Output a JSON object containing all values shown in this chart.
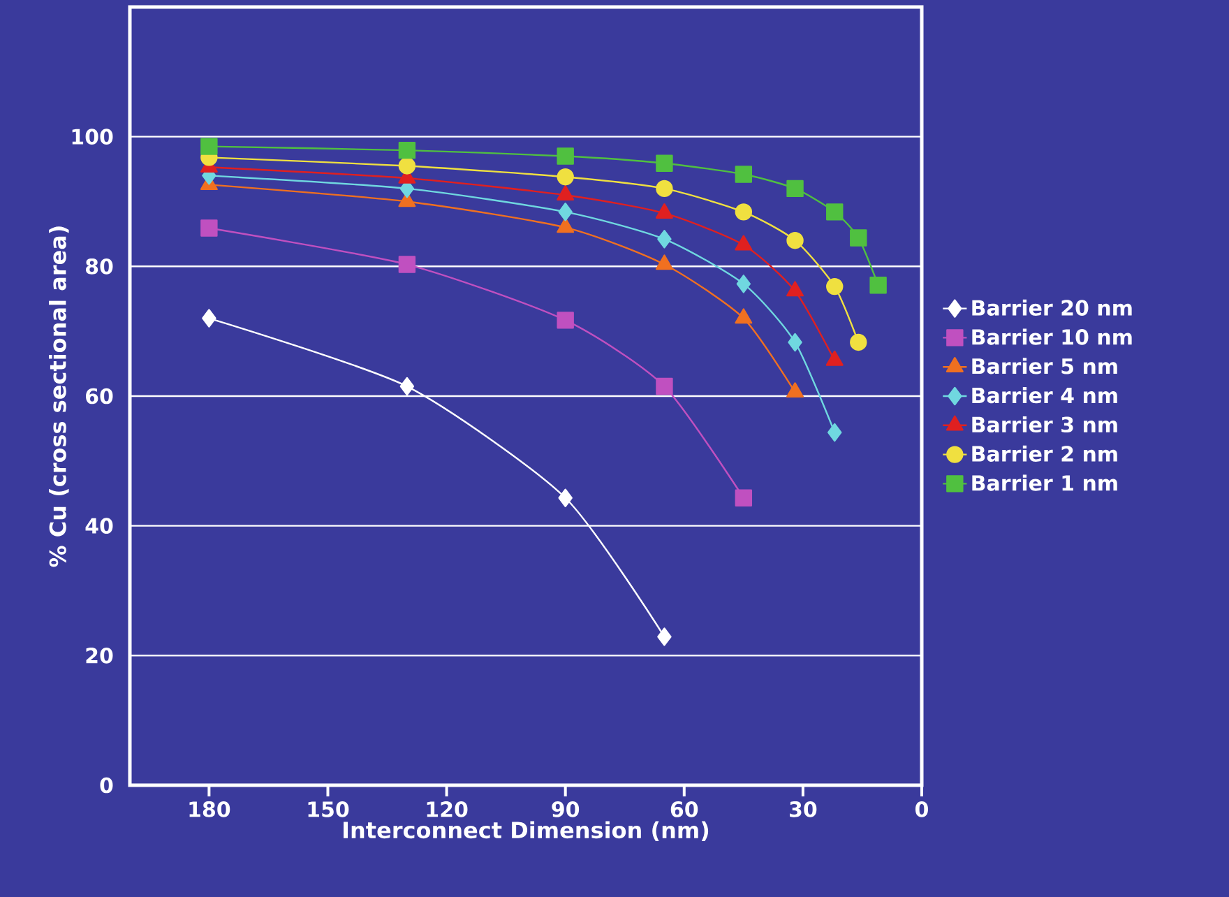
{
  "chart_data": {
    "type": "line",
    "xlabel": "Interconnect Dimension (nm)",
    "ylabel": "% Cu (cross sectional area)",
    "xlim": [
      200,
      0
    ],
    "xticks": [
      180,
      150,
      120,
      90,
      60,
      30,
      0
    ],
    "ylim": [
      0,
      120
    ],
    "yticks": [
      0,
      20,
      40,
      60,
      80,
      100
    ],
    "grid": "y",
    "legend": "right",
    "line_style": "solid",
    "series": [
      {
        "name": "Barrier 20 nm",
        "color": "#ffffff",
        "marker": "diamond",
        "x": [
          180,
          130,
          90,
          65
        ],
        "values": [
          72,
          61.5,
          44.3,
          22.9
        ]
      },
      {
        "name": "Barrier 10 nm",
        "color": "#c050c0",
        "marker": "square",
        "x": [
          180,
          130,
          90,
          65,
          45
        ],
        "values": [
          85.9,
          80.3,
          71.7,
          61.5,
          44.3
        ]
      },
      {
        "name": "Barrier 5 nm",
        "color": "#f07020",
        "marker": "triangle",
        "x": [
          180,
          130,
          90,
          65,
          45,
          32
        ],
        "values": [
          92.6,
          90,
          86,
          80.3,
          72,
          60.6
        ]
      },
      {
        "name": "Barrier 4 nm",
        "color": "#70d8e0",
        "marker": "diamond",
        "x": [
          180,
          130,
          90,
          65,
          45,
          32,
          22
        ],
        "values": [
          94,
          92,
          88.4,
          84.2,
          77.3,
          68.3,
          54.4
        ]
      },
      {
        "name": "Barrier 3 nm",
        "color": "#e02020",
        "marker": "triangle",
        "x": [
          180,
          130,
          90,
          65,
          45,
          32,
          22
        ],
        "values": [
          95.3,
          93.6,
          91,
          88.2,
          83.3,
          76.2,
          65.5
        ]
      },
      {
        "name": "Barrier 2 nm",
        "color": "#f0e040",
        "marker": "circle",
        "x": [
          180,
          130,
          90,
          65,
          45,
          32,
          22,
          16
        ],
        "values": [
          96.8,
          95.5,
          93.8,
          92,
          88.4,
          84,
          76.9,
          68.3
        ]
      },
      {
        "name": "Barrier 1 nm",
        "color": "#50c040",
        "marker": "square",
        "x": [
          180,
          130,
          90,
          65,
          45,
          32,
          22,
          16,
          11
        ],
        "values": [
          98.5,
          97.9,
          97,
          95.9,
          94.2,
          92,
          88.4,
          84.4,
          77.1
        ]
      }
    ]
  }
}
